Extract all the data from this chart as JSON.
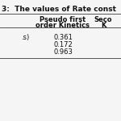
{
  "title": "3:  The values of Rate const",
  "col1_header_line1": "Pseudo first",
  "col1_header_line2": "order Kinetics",
  "col2_header_line1": "Seco",
  "col2_header_line2": "K",
  "row_label": ".s)",
  "data_values": [
    "0.361",
    "0.172",
    "0.963"
  ],
  "background_color": "#f5f5f5",
  "title_fontsize": 6.5,
  "header_fontsize": 6.0,
  "data_fontsize": 6.0
}
